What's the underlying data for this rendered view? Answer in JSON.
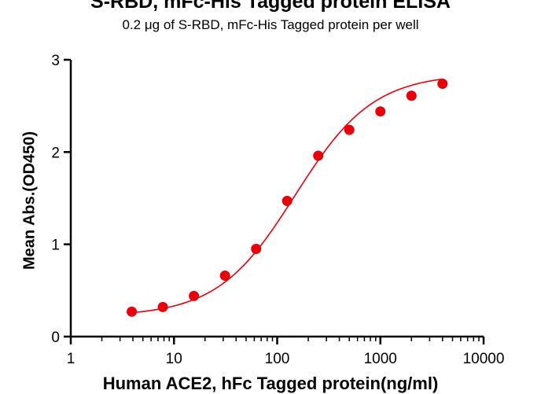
{
  "chart_data": {
    "type": "scatter",
    "title": "S-RBD, mFc-His Tagged protein ELISA",
    "subtitle": "0.2 μg of S-RBD, mFc-His Tagged protein per well",
    "xlabel": "Human ACE2, hFc Tagged protein(ng/ml)",
    "ylabel": "Mean Abs.(OD450)",
    "xscale": "log",
    "xlim": [
      1,
      10000
    ],
    "ylim": [
      0,
      3
    ],
    "xticks": [
      "1",
      "10",
      "100",
      "1000",
      "10000"
    ],
    "yticks": [
      "0",
      "1",
      "2",
      "3"
    ],
    "grid": false,
    "legend": "none",
    "series": [
      {
        "color": "#e8000b",
        "x": [
          3.9,
          7.8,
          15.6,
          31.25,
          62.5,
          125,
          250,
          500,
          1000,
          2000,
          4000
        ],
        "y": [
          0.27,
          0.32,
          0.44,
          0.66,
          0.95,
          1.47,
          1.96,
          2.24,
          2.44,
          2.61,
          2.74
        ]
      }
    ],
    "fit_curve": "four-parameter logistic"
  }
}
